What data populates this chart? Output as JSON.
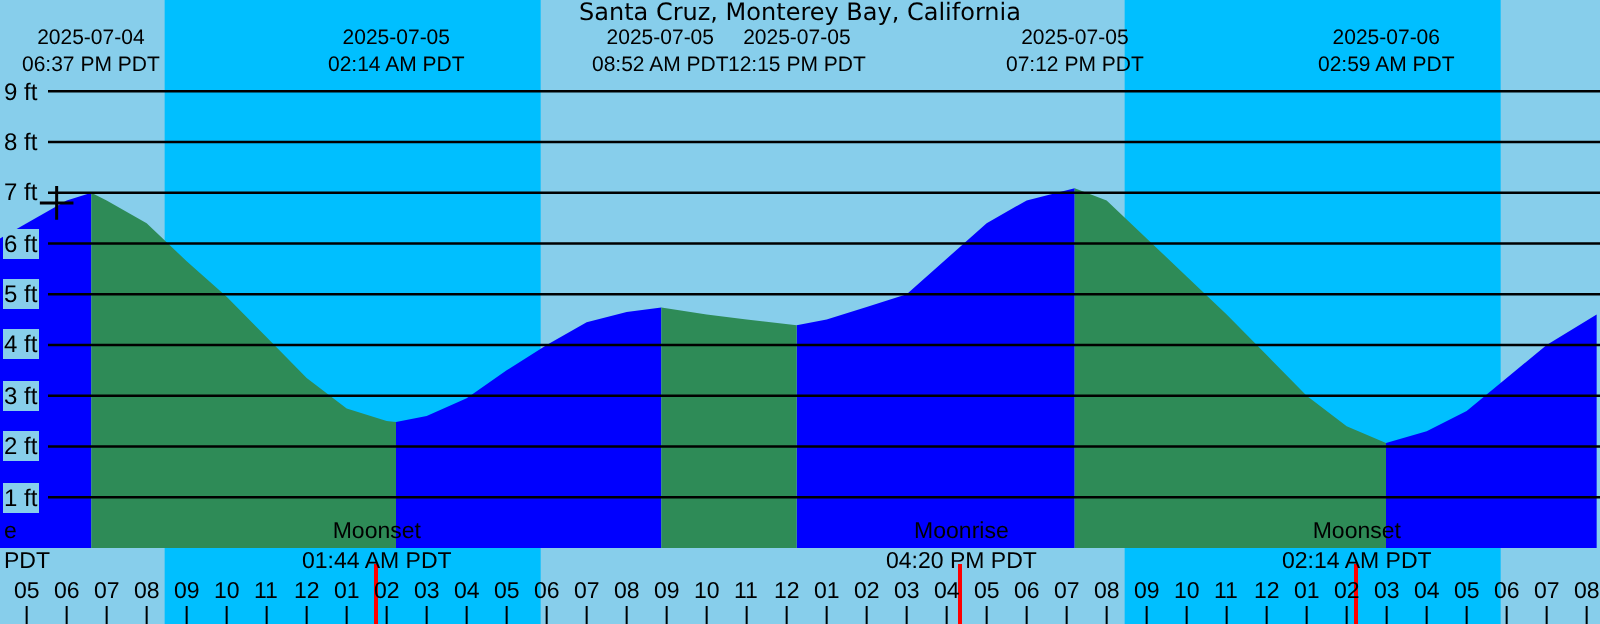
{
  "chart_data": {
    "type": "area",
    "title": "Santa Cruz, Monterey Bay, California",
    "x": [
      "2025-07-04T16:20",
      "2025-07-04T17:00",
      "2025-07-04T18:00",
      "2025-07-04T18:37",
      "2025-07-04T19:00",
      "2025-07-04T20:00",
      "2025-07-04T21:00",
      "2025-07-04T22:00",
      "2025-07-04T23:00",
      "2025-07-05T00:00",
      "2025-07-05T01:00",
      "2025-07-05T02:00",
      "2025-07-05T02:14",
      "2025-07-05T03:00",
      "2025-07-05T04:00",
      "2025-07-05T05:00",
      "2025-07-05T06:00",
      "2025-07-05T07:00",
      "2025-07-05T08:00",
      "2025-07-05T08:52",
      "2025-07-05T10:00",
      "2025-07-05T11:00",
      "2025-07-05T12:15",
      "2025-07-05T13:00",
      "2025-07-05T14:00",
      "2025-07-05T15:00",
      "2025-07-05T16:00",
      "2025-07-05T17:00",
      "2025-07-05T18:00",
      "2025-07-05T19:12",
      "2025-07-05T20:00",
      "2025-07-05T21:00",
      "2025-07-05T22:00",
      "2025-07-05T23:00",
      "2025-07-06T00:00",
      "2025-07-06T01:00",
      "2025-07-06T02:00",
      "2025-07-06T02:59",
      "2025-07-06T04:00",
      "2025-07-06T05:00",
      "2025-07-06T06:00",
      "2025-07-06T07:00",
      "2025-07-06T08:15"
    ],
    "series": [
      {
        "color": "#0000ff",
        "values": [
          6.1,
          6.4,
          6.85,
          7.0,
          null,
          null,
          null,
          null,
          null,
          null,
          null,
          null,
          2.48,
          2.6,
          2.95,
          3.5,
          4.0,
          4.45,
          4.65,
          4.74,
          null,
          null,
          4.39,
          4.5,
          4.75,
          5.0,
          5.7,
          6.4,
          6.85,
          7.09,
          null,
          null,
          null,
          null,
          null,
          null,
          null,
          2.07,
          2.3,
          2.7,
          3.35,
          4.0,
          4.6
        ]
      },
      {
        "color": "#2e8b57",
        "values": [
          null,
          null,
          null,
          7.0,
          6.85,
          6.4,
          5.65,
          4.95,
          4.15,
          3.35,
          2.75,
          2.5,
          2.48,
          null,
          null,
          null,
          null,
          null,
          null,
          4.74,
          4.6,
          4.5,
          4.39,
          null,
          null,
          null,
          null,
          null,
          null,
          7.09,
          6.85,
          6.1,
          5.35,
          4.6,
          3.8,
          3.0,
          2.4,
          2.07,
          null,
          null,
          null,
          null,
          null
        ]
      },
      {
        "type": "scatter",
        "color": "#000000",
        "marker": "cross",
        "x": [
          "2025-07-04T17:45"
        ],
        "values": [
          6.8
        ]
      }
    ],
    "xlim": [
      "2025-07-04T16:20",
      "2025-07-06T08:20"
    ],
    "xticks": [
      {
        "value": "2025-07-04T17:00",
        "label": "05"
      },
      {
        "value": "2025-07-04T18:00",
        "label": "06"
      },
      {
        "value": "2025-07-04T19:00",
        "label": "07"
      },
      {
        "value": "2025-07-04T20:00",
        "label": "08"
      },
      {
        "value": "2025-07-04T21:00",
        "label": "09"
      },
      {
        "value": "2025-07-04T22:00",
        "label": "10"
      },
      {
        "value": "2025-07-04T23:00",
        "label": "11"
      },
      {
        "value": "2025-07-05T00:00",
        "label": "12"
      },
      {
        "value": "2025-07-05T01:00",
        "label": "01"
      },
      {
        "value": "2025-07-05T02:00",
        "label": "02"
      },
      {
        "value": "2025-07-05T03:00",
        "label": "03"
      },
      {
        "value": "2025-07-05T04:00",
        "label": "04"
      },
      {
        "value": "2025-07-05T05:00",
        "label": "05"
      },
      {
        "value": "2025-07-05T06:00",
        "label": "06"
      },
      {
        "value": "2025-07-05T07:00",
        "label": "07"
      },
      {
        "value": "2025-07-05T08:00",
        "label": "08"
      },
      {
        "value": "2025-07-05T09:00",
        "label": "09"
      },
      {
        "value": "2025-07-05T10:00",
        "label": "10"
      },
      {
        "value": "2025-07-05T11:00",
        "label": "11"
      },
      {
        "value": "2025-07-05T12:00",
        "label": "12"
      },
      {
        "value": "2025-07-05T13:00",
        "label": "01"
      },
      {
        "value": "2025-07-05T14:00",
        "label": "02"
      },
      {
        "value": "2025-07-05T15:00",
        "label": "03"
      },
      {
        "value": "2025-07-05T16:00",
        "label": "04"
      },
      {
        "value": "2025-07-05T17:00",
        "label": "05"
      },
      {
        "value": "2025-07-05T18:00",
        "label": "06"
      },
      {
        "value": "2025-07-05T19:00",
        "label": "07"
      },
      {
        "value": "2025-07-05T20:00",
        "label": "08"
      },
      {
        "value": "2025-07-05T21:00",
        "label": "09"
      },
      {
        "value": "2025-07-05T22:00",
        "label": "10"
      },
      {
        "value": "2025-07-05T23:00",
        "label": "11"
      },
      {
        "value": "2025-07-06T00:00",
        "label": "12"
      },
      {
        "value": "2025-07-06T01:00",
        "label": "01"
      },
      {
        "value": "2025-07-06T02:00",
        "label": "02"
      },
      {
        "value": "2025-07-06T03:00",
        "label": "03"
      },
      {
        "value": "2025-07-06T04:00",
        "label": "04"
      },
      {
        "value": "2025-07-06T05:00",
        "label": "05"
      },
      {
        "value": "2025-07-06T06:00",
        "label": "06"
      },
      {
        "value": "2025-07-06T07:00",
        "label": "07"
      },
      {
        "value": "2025-07-06T08:00",
        "label": "08"
      }
    ],
    "x2lim": [
      "2025-07-04T16:20",
      "2025-07-06T08:20"
    ],
    "x2ticks": [
      {
        "value": "2025-07-04T18:37",
        "label": "2025-07-04\n06:37 PM PDT"
      },
      {
        "value": "2025-07-05T02:14",
        "label": "2025-07-05\n02:14 AM PDT"
      },
      {
        "value": "2025-07-05T08:52",
        "label": "2025-07-05\n08:52 AM PDT"
      },
      {
        "value": "2025-07-05T12:15",
        "label": "2025-07-05\n12:15 PM PDT"
      },
      {
        "value": "2025-07-05T19:12",
        "label": "2025-07-05\n07:12 PM PDT"
      },
      {
        "value": "2025-07-06T02:59",
        "label": "2025-07-06\n02:59 AM PDT"
      }
    ],
    "ylim": [
      -1.5,
      10.8
    ],
    "yticks": [
      {
        "value": 1,
        "label": "1 ft"
      },
      {
        "value": 2,
        "label": "2 ft"
      },
      {
        "value": 3,
        "label": "3 ft"
      },
      {
        "value": 4,
        "label": "4 ft"
      },
      {
        "value": 5,
        "label": "5 ft"
      },
      {
        "value": 6,
        "label": "6 ft"
      },
      {
        "value": 7,
        "label": "7 ft"
      },
      {
        "value": 8,
        "label": "8 ft"
      },
      {
        "value": 9,
        "label": "9 ft"
      }
    ],
    "grid": "y",
    "bands": [
      {
        "axis": "x",
        "from": "2025-07-04T20:27",
        "to": "2025-07-05T05:51",
        "color": "#00bfff"
      },
      {
        "axis": "x",
        "from": "2025-07-05T20:27",
        "to": "2025-07-06T05:51",
        "color": "#00bfff"
      }
    ],
    "ref_lines": [
      {
        "axis": "x",
        "value": "2025-07-05T01:44",
        "label": "Moonset\n01:44 AM PDT",
        "color": "#ff0000"
      },
      {
        "axis": "x",
        "value": "2025-07-05T16:20",
        "label": "Moonrise\n04:20 PM PDT",
        "color": "#ff0000"
      },
      {
        "axis": "x",
        "value": "2025-07-06T02:14",
        "label": "Moonset\n02:14 AM PDT",
        "color": "#ff0000"
      }
    ],
    "annotations": [
      "e\nPDT"
    ]
  }
}
